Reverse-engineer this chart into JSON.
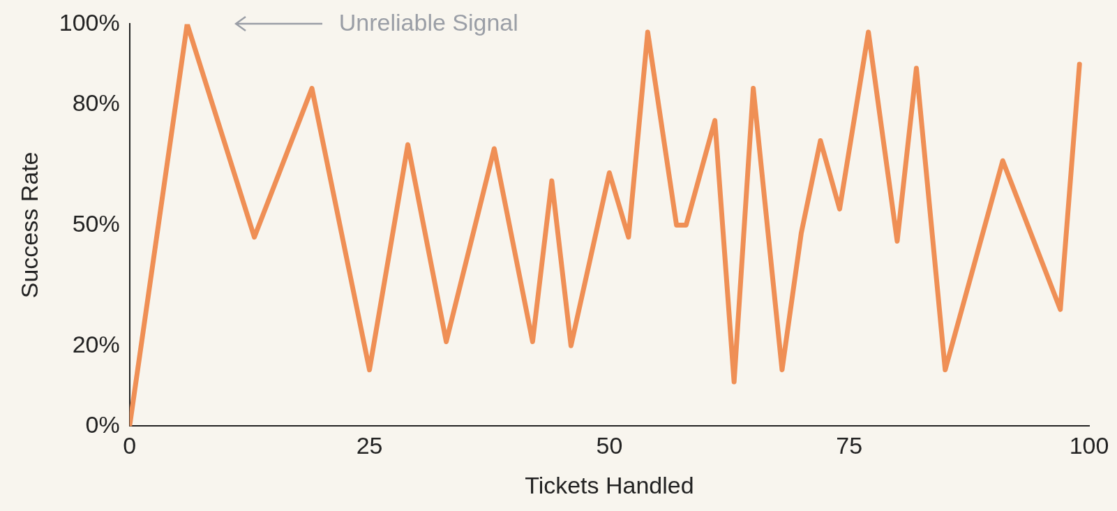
{
  "chart_data": {
    "type": "line",
    "xlabel": "Tickets Handled",
    "ylabel": "Success Rate",
    "x": [
      0,
      6,
      13,
      19,
      25,
      29,
      33,
      38,
      42,
      44,
      46,
      50,
      52,
      54,
      57,
      58,
      61,
      63,
      65,
      68,
      70,
      72,
      74,
      77,
      80,
      82,
      85,
      91,
      97,
      99
    ],
    "values": [
      0,
      100,
      47,
      84,
      14,
      70,
      21,
      69,
      21,
      61,
      20,
      63,
      47,
      98,
      50,
      50,
      76,
      11,
      84,
      14,
      48,
      71,
      54,
      98,
      46,
      89,
      14,
      66,
      29,
      90
    ],
    "color": "#ef8f55",
    "xlim": [
      0,
      100
    ],
    "xticks": [
      0,
      25,
      50,
      75,
      100
    ],
    "ylim": [
      0,
      100
    ],
    "yticks": [
      {
        "value": 0,
        "label": "0%"
      },
      {
        "value": 20,
        "label": "20%"
      },
      {
        "value": 50,
        "label": "50%"
      },
      {
        "value": 80,
        "label": "80%"
      },
      {
        "value": 100,
        "label": "100%"
      }
    ],
    "grid": false,
    "marker": "none",
    "line_style": "solid",
    "annotations": [
      "Unreliable Signal"
    ]
  }
}
